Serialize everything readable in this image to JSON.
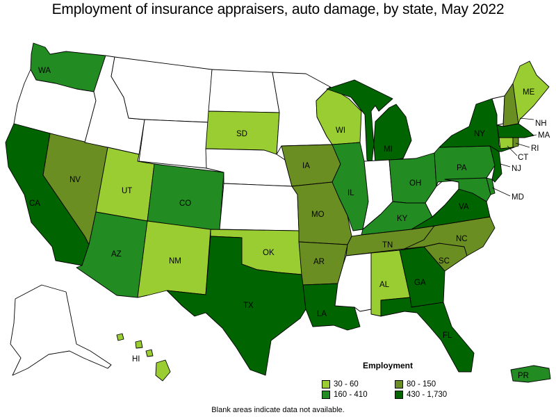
{
  "title": "Employment of insurance appraisers, auto damage, by state, May 2022",
  "footnote": "Blank areas indicate data not available.",
  "legend": {
    "title": "Employment",
    "items": [
      {
        "label": "30 - 60",
        "color": "#9acd32"
      },
      {
        "label": "80 - 150",
        "color": "#6b8e23"
      },
      {
        "label": "160 - 410",
        "color": "#228b22"
      },
      {
        "label": "430 - 1,730",
        "color": "#006400"
      }
    ]
  },
  "colors": {
    "blank": "#ffffff",
    "c1": "#9acd32",
    "c2": "#6b8e23",
    "c3": "#228b22",
    "c4": "#006400"
  },
  "states": {
    "WA": {
      "label": "WA",
      "class": "c3"
    },
    "CA": {
      "label": "CA",
      "class": "c4"
    },
    "NV": {
      "label": "NV",
      "class": "c2"
    },
    "UT": {
      "label": "UT",
      "class": "c1"
    },
    "CO": {
      "label": "CO",
      "class": "c3"
    },
    "AZ": {
      "label": "AZ",
      "class": "c3"
    },
    "NM": {
      "label": "NM",
      "class": "c1"
    },
    "SD": {
      "label": "SD",
      "class": "c1"
    },
    "OK": {
      "label": "OK",
      "class": "c1"
    },
    "TX": {
      "label": "TX",
      "class": "c4"
    },
    "IA": {
      "label": "IA",
      "class": "c2"
    },
    "MO": {
      "label": "MO",
      "class": "c2"
    },
    "AR": {
      "label": "AR",
      "class": "c2"
    },
    "LA": {
      "label": "LA",
      "class": "c4"
    },
    "WI": {
      "label": "WI",
      "class": "c1"
    },
    "IL": {
      "label": "IL",
      "class": "c3"
    },
    "MI": {
      "label": "MI",
      "class": "c4"
    },
    "OH": {
      "label": "OH",
      "class": "c3"
    },
    "KY": {
      "label": "KY",
      "class": "c3"
    },
    "TN": {
      "label": "TN",
      "class": "c2"
    },
    "AL": {
      "label": "AL",
      "class": "c1"
    },
    "GA": {
      "label": "GA",
      "class": "c4"
    },
    "FL": {
      "label": "FL",
      "class": "c4"
    },
    "SC": {
      "label": "SC",
      "class": "c2"
    },
    "NC": {
      "label": "NC",
      "class": "c2"
    },
    "VA": {
      "label": "VA",
      "class": "c4"
    },
    "PA": {
      "label": "PA",
      "class": "c3"
    },
    "NY": {
      "label": "NY",
      "class": "c4"
    },
    "NJ": {
      "label": "NJ",
      "class": "c4"
    },
    "MD": {
      "label": "MD",
      "class": "c3"
    },
    "DE": {
      "label": "",
      "class": "c3"
    },
    "CT": {
      "label": "CT",
      "class": "c1"
    },
    "RI": {
      "label": "RI",
      "class": "c2"
    },
    "MA": {
      "label": "MA",
      "class": "c4"
    },
    "NH": {
      "label": "NH",
      "class": "c2"
    },
    "VT": {
      "label": "",
      "class": "blank"
    },
    "ME": {
      "label": "ME",
      "class": "c1"
    },
    "HI": {
      "label": "HI",
      "class": "c1"
    },
    "PR": {
      "label": "PR",
      "class": "c3"
    },
    "OR": {
      "label": "",
      "class": "blank"
    },
    "ID": {
      "label": "",
      "class": "blank"
    },
    "MT": {
      "label": "",
      "class": "blank"
    },
    "WY": {
      "label": "",
      "class": "blank"
    },
    "ND": {
      "label": "",
      "class": "blank"
    },
    "NE": {
      "label": "",
      "class": "blank"
    },
    "KS": {
      "label": "",
      "class": "blank"
    },
    "MN": {
      "label": "",
      "class": "blank"
    },
    "IN": {
      "label": "",
      "class": "blank"
    },
    "MS": {
      "label": "",
      "class": "blank"
    },
    "WV": {
      "label": "",
      "class": "blank"
    },
    "AK": {
      "label": "",
      "class": "blank"
    }
  }
}
